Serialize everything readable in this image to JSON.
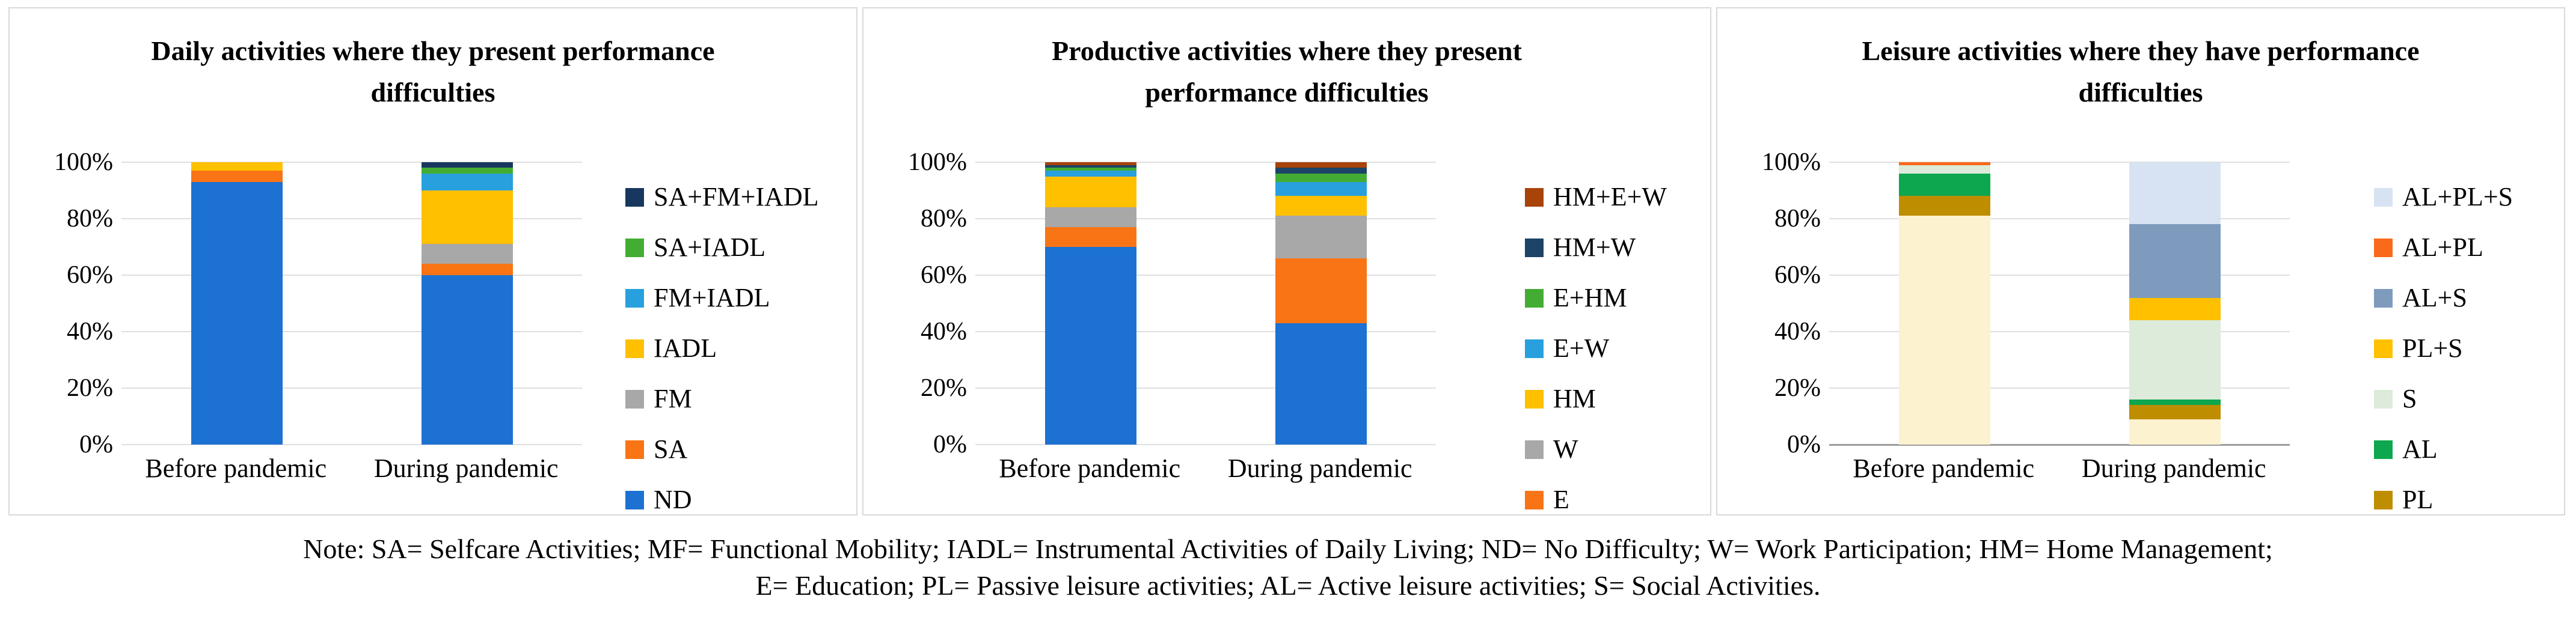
{
  "note": {
    "line1": "Note: SA= Selfcare Activities; MF= Functional Mobility; IADL= Instrumental Activities of Daily Living; ND= No Difficulty; W= Work Participation; HM= Home Management;",
    "line2": "E= Education; PL= Passive leisure activities; AL= Active leisure activities; S= Social Activities."
  },
  "colors": {
    "panel_border": "#d9d9d9",
    "gridline": "#dfdfdf",
    "axis_dark": "#9c9c9c"
  },
  "chart_data": [
    {
      "type": "bar",
      "stacked": true,
      "title": "Daily activities where they present performance difficulties",
      "categories": [
        "Before pandemic",
        "During pandemic"
      ],
      "yticks": [
        "100%",
        "80%",
        "60%",
        "40%",
        "20%",
        "0%"
      ],
      "ylim": [
        0,
        100
      ],
      "grid": true,
      "dark_baseline": false,
      "legend_position": "right",
      "legend_labels": [
        "SA+FM+IADL",
        "SA+IADL",
        "FM+IADL",
        "IADL",
        "FM",
        "SA",
        "ND"
      ],
      "series": [
        {
          "name": "ND",
          "color": "#1c71d2",
          "in_legend": true,
          "values": [
            93,
            60
          ]
        },
        {
          "name": "SA",
          "color": "#f97415",
          "in_legend": true,
          "values": [
            4,
            4
          ]
        },
        {
          "name": "FM",
          "color": "#a8a8a8",
          "in_legend": true,
          "values": [
            0,
            7
          ]
        },
        {
          "name": "IADL",
          "color": "#ffc000",
          "in_legend": true,
          "values": [
            3,
            19
          ]
        },
        {
          "name": "FM+IADL",
          "color": "#27a0dd",
          "in_legend": true,
          "values": [
            0,
            6
          ]
        },
        {
          "name": "SA+IADL",
          "color": "#43ad33",
          "in_legend": true,
          "values": [
            0,
            2
          ]
        },
        {
          "name": "SA+FM+IADL",
          "color": "#17375e",
          "in_legend": true,
          "values": [
            0,
            2
          ]
        }
      ]
    },
    {
      "type": "bar",
      "stacked": true,
      "title": "Productive activities where they present performance difficulties",
      "categories": [
        "Before pandemic",
        "During pandemic"
      ],
      "yticks": [
        "100%",
        "80%",
        "60%",
        "40%",
        "20%",
        "0%"
      ],
      "ylim": [
        0,
        100
      ],
      "grid": true,
      "dark_baseline": false,
      "legend_position": "right",
      "legend_labels": [
        "HM+E+W",
        "HM+W",
        "E+HM",
        "E+W",
        "HM",
        "W",
        "E"
      ],
      "series": [
        {
          "name": "ND",
          "color": "#1c71d2",
          "in_legend": false,
          "values": [
            70,
            43
          ]
        },
        {
          "name": "E",
          "color": "#f97415",
          "in_legend": true,
          "values": [
            7,
            23
          ]
        },
        {
          "name": "W",
          "color": "#a8a8a8",
          "in_legend": true,
          "values": [
            7,
            15
          ]
        },
        {
          "name": "HM",
          "color": "#ffc000",
          "in_legend": true,
          "values": [
            11,
            7
          ]
        },
        {
          "name": "E+W",
          "color": "#27a0dd",
          "in_legend": true,
          "values": [
            2,
            5
          ]
        },
        {
          "name": "E+HM",
          "color": "#43ad33",
          "in_legend": true,
          "values": [
            1,
            3
          ]
        },
        {
          "name": "HM+W",
          "color": "#1b4466",
          "in_legend": true,
          "values": [
            1,
            2
          ]
        },
        {
          "name": "HM+E+W",
          "color": "#a8430a",
          "in_legend": true,
          "values": [
            1,
            2
          ]
        }
      ]
    },
    {
      "type": "bar",
      "stacked": true,
      "title": "Leisure activities where they have performance difficulties",
      "categories": [
        "Before pandemic",
        "During pandemic"
      ],
      "yticks": [
        "100%",
        "80%",
        "60%",
        "40%",
        "20%",
        "0%"
      ],
      "ylim": [
        0,
        100
      ],
      "grid": true,
      "dark_baseline": true,
      "legend_position": "right",
      "legend_labels": [
        "AL+PL+S",
        "AL+PL",
        "AL+S",
        "PL+S",
        "S",
        "AL",
        "PL"
      ],
      "series": [
        {
          "name": "ND",
          "color": "#fdf2cf",
          "in_legend": false,
          "values": [
            81,
            9
          ]
        },
        {
          "name": "PL",
          "color": "#be8d00",
          "in_legend": true,
          "values": [
            7,
            5
          ]
        },
        {
          "name": "AL",
          "color": "#0ca74e",
          "in_legend": true,
          "values": [
            8,
            2
          ]
        },
        {
          "name": "S",
          "color": "#dcebda",
          "in_legend": true,
          "values": [
            3,
            28
          ]
        },
        {
          "name": "PL+S",
          "color": "#ffc000",
          "in_legend": true,
          "values": [
            0,
            8
          ]
        },
        {
          "name": "AL+S",
          "color": "#7e9bbd",
          "in_legend": true,
          "values": [
            0,
            26
          ]
        },
        {
          "name": "AL+PL",
          "color": "#f96a1b",
          "in_legend": true,
          "values": [
            1,
            0
          ]
        },
        {
          "name": "AL+PL+S",
          "color": "#d7e3f2",
          "in_legend": true,
          "values": [
            0,
            22
          ]
        }
      ]
    }
  ]
}
